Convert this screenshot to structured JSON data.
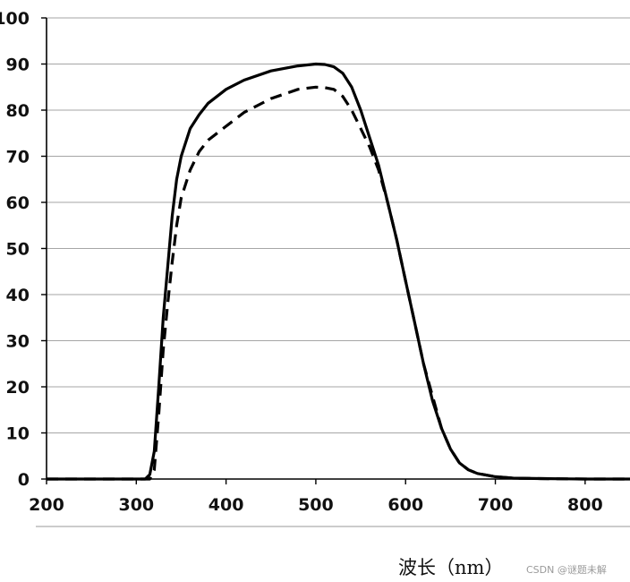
{
  "chart_data": {
    "type": "line",
    "title": "",
    "xlabel": "波长（nm）",
    "ylabel": "",
    "xlim": [
      200,
      850
    ],
    "ylim": [
      0,
      100
    ],
    "xticks": [
      200,
      300,
      400,
      500,
      600,
      700,
      800
    ],
    "yticks": [
      0,
      10,
      20,
      30,
      40,
      50,
      60,
      70,
      80,
      90,
      100
    ],
    "grid": "horizontal",
    "legend": "none",
    "series": [
      {
        "style": "solid",
        "color": "#000000",
        "x": [
          200,
          300,
          310,
          315,
          320,
          325,
          330,
          335,
          340,
          345,
          350,
          360,
          370,
          380,
          400,
          420,
          450,
          480,
          500,
          510,
          520,
          530,
          540,
          550,
          560,
          570,
          580,
          590,
          600,
          610,
          620,
          630,
          640,
          650,
          660,
          670,
          680,
          700,
          720,
          750,
          800,
          850
        ],
        "y": [
          0,
          0,
          0,
          1,
          6,
          20,
          35,
          46,
          57,
          65,
          70,
          76,
          79,
          81.5,
          84.5,
          86.5,
          88.5,
          89.6,
          90,
          89.9,
          89.4,
          88,
          85,
          80,
          74,
          68,
          60,
          52,
          43,
          34,
          25,
          17,
          11,
          6.5,
          3.5,
          2,
          1.2,
          0.5,
          0.2,
          0.1,
          0,
          0
        ]
      },
      {
        "style": "dashed",
        "color": "#000000",
        "x": [
          200,
          310,
          315,
          320,
          325,
          330,
          335,
          340,
          345,
          350,
          360,
          370,
          380,
          400,
          420,
          450,
          480,
          500,
          510,
          520,
          530,
          540,
          550,
          560,
          570,
          580,
          590,
          600,
          610,
          620,
          630,
          640,
          650,
          660,
          670,
          680,
          700,
          720,
          750,
          800,
          850
        ],
        "y": [
          0,
          0,
          0,
          2,
          14,
          28,
          38,
          47,
          55,
          61,
          67,
          71,
          73.5,
          76.5,
          79.5,
          82.5,
          84.5,
          85,
          84.9,
          84.5,
          83,
          80,
          76,
          72,
          67,
          60,
          52,
          43,
          34,
          25,
          18,
          11,
          6.5,
          3.5,
          2,
          1.2,
          0.5,
          0.2,
          0.1,
          0,
          0
        ]
      }
    ]
  },
  "watermark": "CSDN @谜题未解"
}
